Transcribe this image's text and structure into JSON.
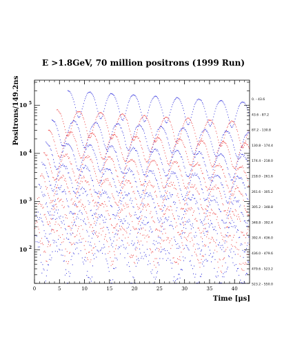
{
  "chart_data": {
    "type": "line",
    "title": "E >1.8GeV, 70 million positrons (1999 Run)",
    "xlabel": "Time [μs]",
    "ylabel": "Positrons/149.2ns",
    "xlim": [
      0,
      43
    ],
    "x_ticks": [
      0,
      5,
      10,
      15,
      20,
      25,
      30,
      35,
      40
    ],
    "y_scale": "log",
    "y_decades": [
      {
        "base": "10",
        "exp": "2",
        "value": 100
      },
      {
        "base": "10",
        "exp": "3",
        "value": 1000
      },
      {
        "base": "10",
        "exp": "4",
        "value": 10000
      },
      {
        "base": "10",
        "exp": "5",
        "value": 100000
      }
    ],
    "bin_width_ns": 149.2,
    "oscillation_period_us": 4.37,
    "series_colors": [
      "#3333dd",
      "#ee4444"
    ],
    "series": [
      {
        "label": "0. - 43.6",
        "start_us": 6.7,
        "first_peak": 200000,
        "modulation": 0.55,
        "noise": 0.01
      },
      {
        "label": "43.6 - 87.2",
        "start_us": 4.5,
        "first_peak": 80000,
        "modulation": 0.55,
        "noise": 0.015
      },
      {
        "label": "87.2 - 130.8",
        "start_us": 3.5,
        "first_peak": 50000,
        "modulation": 0.55,
        "noise": 0.02
      },
      {
        "label": "130.8 - 174.4",
        "start_us": 2.8,
        "first_peak": 30000,
        "modulation": 0.55,
        "noise": 0.025
      },
      {
        "label": "174.4 - 218.0",
        "start_us": 2.3,
        "first_peak": 17000,
        "modulation": 0.55,
        "noise": 0.03
      },
      {
        "label": "218.0 - 261.6",
        "start_us": 1.9,
        "first_peak": 10000,
        "modulation": 0.55,
        "noise": 0.04
      },
      {
        "label": "261.6 - 305.2",
        "start_us": 1.5,
        "first_peak": 6000,
        "modulation": 0.55,
        "noise": 0.05
      },
      {
        "label": "305.2 - 348.8",
        "start_us": 1.2,
        "first_peak": 3500,
        "modulation": 0.55,
        "noise": 0.07
      },
      {
        "label": "348.8 - 392.4",
        "start_us": 0.9,
        "first_peak": 2000,
        "modulation": 0.55,
        "noise": 0.09
      },
      {
        "label": "392.4 - 436.0",
        "start_us": 0.6,
        "first_peak": 1100,
        "modulation": 0.55,
        "noise": 0.11
      },
      {
        "label": "436.0 - 479.6",
        "start_us": 0.3,
        "first_peak": 600,
        "modulation": 0.55,
        "noise": 0.15
      },
      {
        "label": "479.6 - 523.2",
        "start_us": 0.1,
        "first_peak": 320,
        "modulation": 0.6,
        "noise": 0.19
      },
      {
        "label": "523.2 - 550.0",
        "start_us": 0.0,
        "first_peak": 150,
        "modulation": 0.7,
        "noise": 0.23
      }
    ]
  }
}
